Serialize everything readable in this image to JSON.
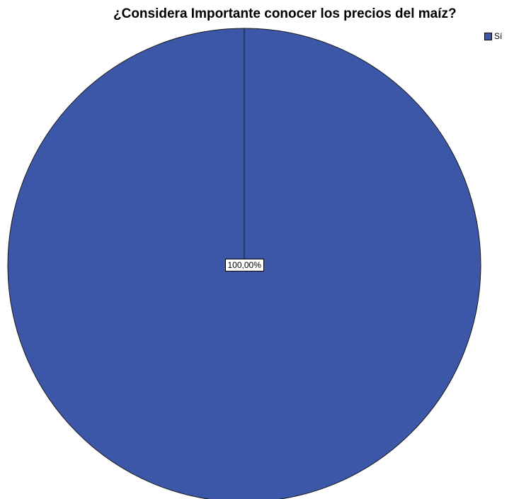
{
  "chart_data": {
    "type": "pie",
    "title": "¿Considera Importante conocer los precios del maíz?",
    "slices": [
      {
        "name": "Sí",
        "value": 100,
        "label": "100,00%",
        "color": "#3c57a8"
      }
    ],
    "legend": {
      "position": "top-right",
      "entries": [
        "Sí"
      ]
    },
    "stroke_color": "#1a1a1a"
  }
}
